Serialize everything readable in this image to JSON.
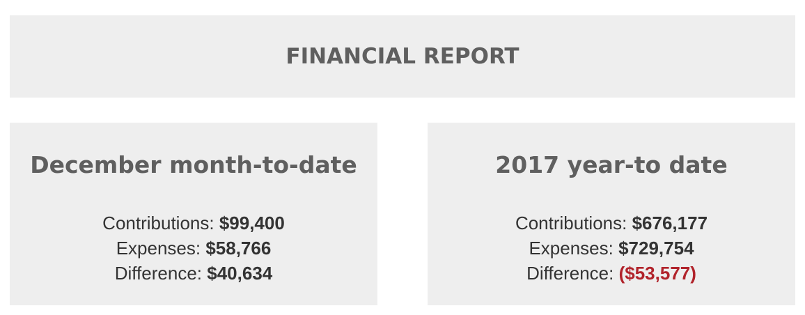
{
  "report": {
    "title": "FINANCIAL REPORT"
  },
  "month_to_date": {
    "title": "December month-to-date",
    "contributions_label": "Contributions:",
    "contributions_value": "$99,400",
    "expenses_label": "Expenses:",
    "expenses_value": "$58,766",
    "difference_label": "Difference:",
    "difference_value": "$40,634"
  },
  "year_to_date": {
    "title": "2017 year-to date",
    "contributions_label": "Contributions:",
    "contributions_value": "$676,177",
    "expenses_label": "Expenses:",
    "expenses_value": "$729,754",
    "difference_label": "Difference:",
    "difference_value": "($53,577)"
  },
  "colors": {
    "panel_background": "#eeeeee",
    "heading_text": "#5f5f5f",
    "body_text": "#333333",
    "negative_value": "#b1232b"
  }
}
